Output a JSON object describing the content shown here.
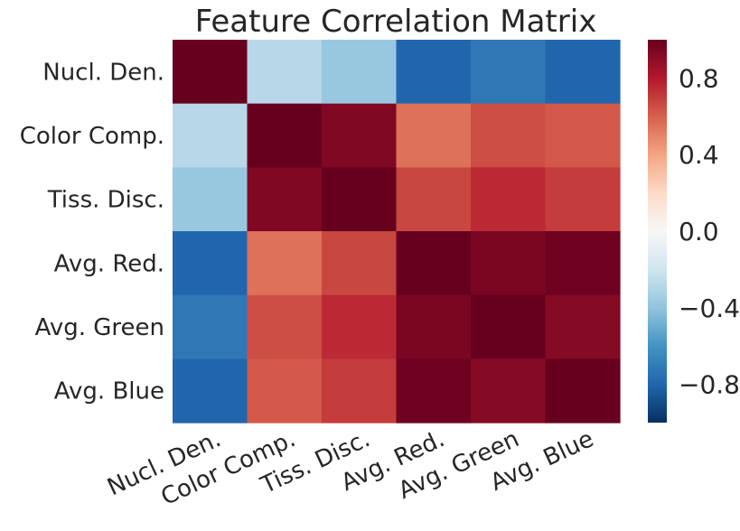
{
  "chart_data": {
    "type": "heatmap",
    "title": "Feature Correlation Matrix",
    "xlabel": "",
    "ylabel": "",
    "row_labels": [
      "Nucl. Den.",
      "Color Comp.",
      "Tiss. Disc.",
      "Avg. Red.",
      "Avg. Green",
      "Avg. Blue"
    ],
    "column_labels": [
      "Nucl. Den.",
      "Color Comp.",
      "Tiss. Disc.",
      "Avg. Red.",
      "Avg. Green",
      "Avg. Blue"
    ],
    "values": [
      [
        1.0,
        -0.28,
        -0.38,
        -0.8,
        -0.72,
        -0.8
      ],
      [
        -0.28,
        1.0,
        0.93,
        0.55,
        0.65,
        0.62
      ],
      [
        -0.38,
        0.93,
        1.0,
        0.67,
        0.75,
        0.7
      ],
      [
        -0.8,
        0.55,
        0.67,
        1.0,
        0.95,
        0.98
      ],
      [
        -0.72,
        0.65,
        0.75,
        0.95,
        1.0,
        0.92
      ],
      [
        -0.8,
        0.62,
        0.7,
        0.98,
        0.92,
        1.0
      ]
    ],
    "colorbar": {
      "vmin": -1.0,
      "vmax": 1.0,
      "tick_values": [
        0.8,
        0.4,
        0.0,
        -0.4,
        -0.8
      ],
      "tick_labels": [
        "0.8",
        "0.4",
        "0.0",
        "−0.4",
        "−0.8"
      ],
      "colormap": "RdBu_r",
      "colors": [
        "#053061",
        "#2166ac",
        "#4393c3",
        "#92c5de",
        "#d1e5f0",
        "#f7f7f7",
        "#fddbc7",
        "#f4a582",
        "#d6604d",
        "#b2182b",
        "#67001f"
      ]
    },
    "grid": false
  }
}
